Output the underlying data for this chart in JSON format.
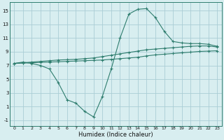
{
  "xlabel": "Humidex (Indice chaleur)",
  "line1_x": [
    0,
    1,
    2,
    3,
    4,
    5,
    6,
    7,
    8,
    9,
    10,
    11,
    12,
    13,
    14,
    15,
    16,
    17,
    18,
    19,
    20,
    21,
    22,
    23
  ],
  "line1_y": [
    7.3,
    7.5,
    7.3,
    7.0,
    6.5,
    4.5,
    2.0,
    1.5,
    0.3,
    -0.5,
    2.5,
    6.5,
    11.0,
    14.5,
    15.2,
    15.3,
    14.0,
    12.0,
    10.5,
    10.3,
    10.2,
    10.2,
    10.1,
    9.8
  ],
  "line2_x": [
    0,
    1,
    2,
    3,
    4,
    5,
    6,
    7,
    8,
    9,
    10,
    11,
    12,
    13,
    14,
    15,
    16,
    17,
    18,
    19,
    20,
    21,
    22,
    23
  ],
  "line2_y": [
    7.3,
    7.4,
    7.5,
    7.6,
    7.7,
    7.8,
    7.85,
    7.9,
    8.0,
    8.1,
    8.3,
    8.5,
    8.7,
    8.9,
    9.1,
    9.3,
    9.4,
    9.5,
    9.6,
    9.7,
    9.8,
    9.85,
    9.85,
    9.7
  ],
  "line3_x": [
    0,
    1,
    2,
    3,
    4,
    5,
    6,
    7,
    8,
    9,
    10,
    11,
    12,
    13,
    14,
    15,
    16,
    17,
    18,
    19,
    20,
    21,
    22,
    23
  ],
  "line3_y": [
    7.3,
    7.35,
    7.4,
    7.45,
    7.5,
    7.55,
    7.6,
    7.65,
    7.7,
    7.75,
    7.8,
    7.9,
    8.0,
    8.1,
    8.2,
    8.4,
    8.55,
    8.65,
    8.75,
    8.85,
    8.95,
    9.05,
    9.1,
    9.15
  ],
  "line_color": "#2e7d6e",
  "bg_color": "#d8eef0",
  "grid_color": "#aacdd5",
  "ylim": [
    -1.8,
    16.2
  ],
  "xlim": [
    -0.5,
    23.5
  ],
  "yticks": [
    -1,
    1,
    3,
    5,
    7,
    9,
    11,
    13,
    15
  ],
  "xticks": [
    0,
    1,
    2,
    3,
    4,
    5,
    6,
    7,
    8,
    9,
    10,
    11,
    12,
    13,
    14,
    15,
    16,
    17,
    18,
    19,
    20,
    21,
    22,
    23
  ]
}
